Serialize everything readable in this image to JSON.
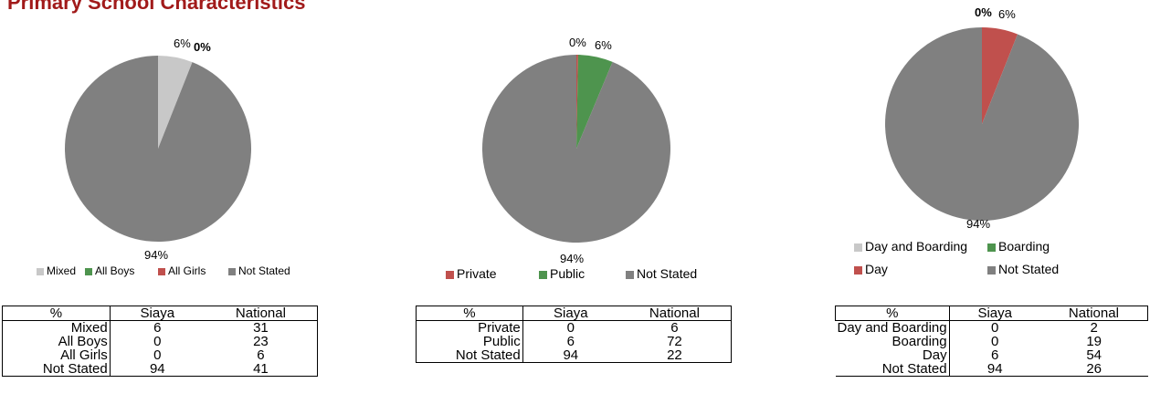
{
  "page": {
    "title": "Primary School Characteristics"
  },
  "chart_data": [
    {
      "type": "pie",
      "categories": [
        "Mixed",
        "All Boys",
        "All Girls",
        "Not Stated"
      ],
      "values": [
        6,
        0,
        0,
        94
      ],
      "colors": [
        "#c8c8c8",
        "#4e944e",
        "#c0504d",
        "#808080"
      ],
      "slice_labels": [
        "6%",
        "0%",
        "0%",
        "94%"
      ],
      "legend_position": "bottom"
    },
    {
      "type": "pie",
      "categories": [
        "Private",
        "Public",
        "Not Stated"
      ],
      "values": [
        0.3,
        6,
        94
      ],
      "colors": [
        "#c0504d",
        "#4e944e",
        "#808080"
      ],
      "slice_labels": [
        "0%",
        "6%",
        "94%"
      ],
      "legend_position": "bottom"
    },
    {
      "type": "pie",
      "categories": [
        "Day and Boarding",
        "Boarding",
        "Day",
        "Not Stated"
      ],
      "values": [
        0,
        0,
        6,
        94
      ],
      "colors": [
        "#c8c8c8",
        "#4e944e",
        "#c0504d",
        "#808080"
      ],
      "slice_labels": [
        "0%",
        "0%",
        "6%",
        "94%"
      ],
      "legend_position": "bottom"
    },
    {
      "type": "table",
      "header": [
        "%",
        "Siaya",
        "National"
      ],
      "rows": [
        [
          "Mixed",
          "6",
          "31"
        ],
        [
          "All Boys",
          "0",
          "23"
        ],
        [
          "All Girls",
          "0",
          "6"
        ],
        [
          "Not Stated",
          "94",
          "41"
        ]
      ]
    },
    {
      "type": "table",
      "header": [
        "%",
        "Siaya",
        "National"
      ],
      "rows": [
        [
          "Private",
          "0",
          "6"
        ],
        [
          "Public",
          "6",
          "72"
        ],
        [
          "Not Stated",
          "94",
          "22"
        ]
      ]
    },
    {
      "type": "table",
      "header": [
        "%",
        "Siaya",
        "National"
      ],
      "rows": [
        [
          "Day and Boarding",
          "0",
          "2"
        ],
        [
          "Boarding",
          "0",
          "19"
        ],
        [
          "Day",
          "6",
          "54"
        ],
        [
          "Not Stated",
          "94",
          "26"
        ]
      ]
    }
  ]
}
